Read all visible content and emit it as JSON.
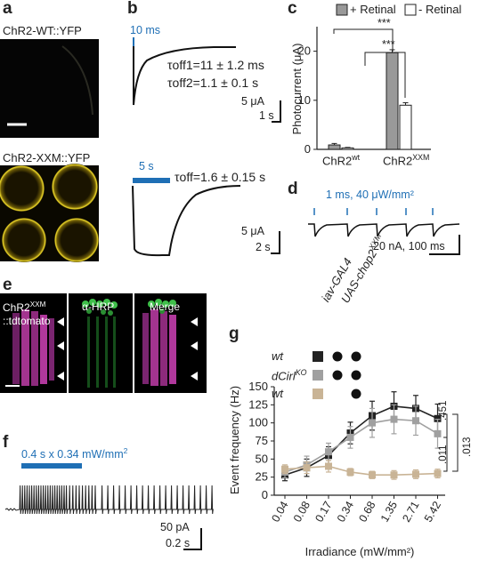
{
  "panel_a": {
    "letter": "a",
    "wt_label": "ChR2-WT::YFP",
    "xxm_label": "ChR2-XXM::YFP"
  },
  "panel_b": {
    "letter": "b",
    "stim1": "10 ms",
    "tau_off1": "τoff1=11 ± 1.2 ms",
    "tau_off2": "τoff2=1.1 ± 0.1 s",
    "scale1_y": "5 μA",
    "scale1_x": "1 s",
    "stim2": "5 s",
    "tau_off": "τoff=1.6 ± 0.15 s",
    "scale2_y": "5 μA",
    "scale2_x": "2 s"
  },
  "panel_c": {
    "letter": "c",
    "legend_plus": "+ Retinal",
    "legend_minus": "- Retinal",
    "sig1": "***",
    "sig2": "***",
    "cat_wt": "ChR2",
    "cat_wt_sup": "wt",
    "cat_xxm": "ChR2",
    "cat_xxm_sup": "XXM"
  },
  "panel_d": {
    "letter": "d",
    "stim": "1 ms, 40 μW/mm²",
    "scale": "20 nA, 100 ms"
  },
  "panel_e": {
    "letter": "e",
    "col1_line1": "ChR2",
    "col1_sup": "XXM",
    "col1_line2": "::tdtomato",
    "col2": "α-HRP",
    "col3": "Merge"
  },
  "panel_f": {
    "letter": "f",
    "stim": "0.4 s x 0.34 mW/mm",
    "stim_sup": "2",
    "scale_y": "50 pA",
    "scale_x": "0.2 s"
  },
  "panel_g": {
    "letter": "g",
    "col_head1": "iav-GAL4",
    "col_head2": "UAS-chop2",
    "col_head2_sup": "XXM",
    "row1": "wt",
    "row2": "dCirl",
    "row2_sup": "KO",
    "row3": "wt",
    "stat1": ".451",
    "stat2": ".011",
    "stat3": ".013"
  },
  "colors": {
    "accent_blue": "#1f6fb5",
    "bar_retinal": "#999999",
    "series_black": "#222222",
    "series_grey": "#a0a0a0",
    "series_tan": "#c9b496",
    "magenta": "#b0389c",
    "green": "#3fbf4a",
    "yellow": "#f4dd2a"
  },
  "chart_data": [
    {
      "type": "bar",
      "categories": [
        "ChR2wt",
        "ChR2XXM"
      ],
      "series": [
        {
          "name": "+ Retinal",
          "values": [
            0.9,
            19.7
          ],
          "errors": [
            0.3,
            0.6
          ]
        },
        {
          "name": "- Retinal",
          "values": [
            0.3,
            9.0
          ],
          "errors": [
            0.1,
            0.5
          ]
        }
      ],
      "ylabel": "Photocurrent (μA)",
      "ylim": [
        0,
        25
      ],
      "yticks": [
        0,
        10,
        20
      ]
    },
    {
      "type": "line",
      "x": [
        "0.04",
        "0.08",
        "0.17",
        "0.34",
        "0.68",
        "1.35",
        "2.71",
        "5.42"
      ],
      "series": [
        {
          "values": [
            28,
            38,
            55,
            86,
            110,
            123,
            120,
            106
          ],
          "errors": [
            8,
            12,
            12,
            15,
            20,
            20,
            18,
            20
          ],
          "color": "#222222",
          "marker": "square"
        },
        {
          "values": [
            32,
            42,
            60,
            80,
            100,
            105,
            103,
            85
          ],
          "errors": [
            8,
            12,
            12,
            15,
            20,
            20,
            20,
            20
          ],
          "color": "#a0a0a0",
          "marker": "square"
        },
        {
          "values": [
            36,
            38,
            40,
            32,
            28,
            28,
            29,
            30
          ],
          "errors": [
            6,
            8,
            8,
            5,
            5,
            6,
            6,
            6
          ],
          "color": "#c9b496",
          "marker": "square"
        }
      ],
      "xlabel": "Irradiance (mW/mm²)",
      "ylabel": "Event frequency (Hz)",
      "ylim": [
        0,
        150
      ],
      "yticks": [
        0,
        25,
        50,
        75,
        100,
        125,
        150
      ]
    }
  ]
}
